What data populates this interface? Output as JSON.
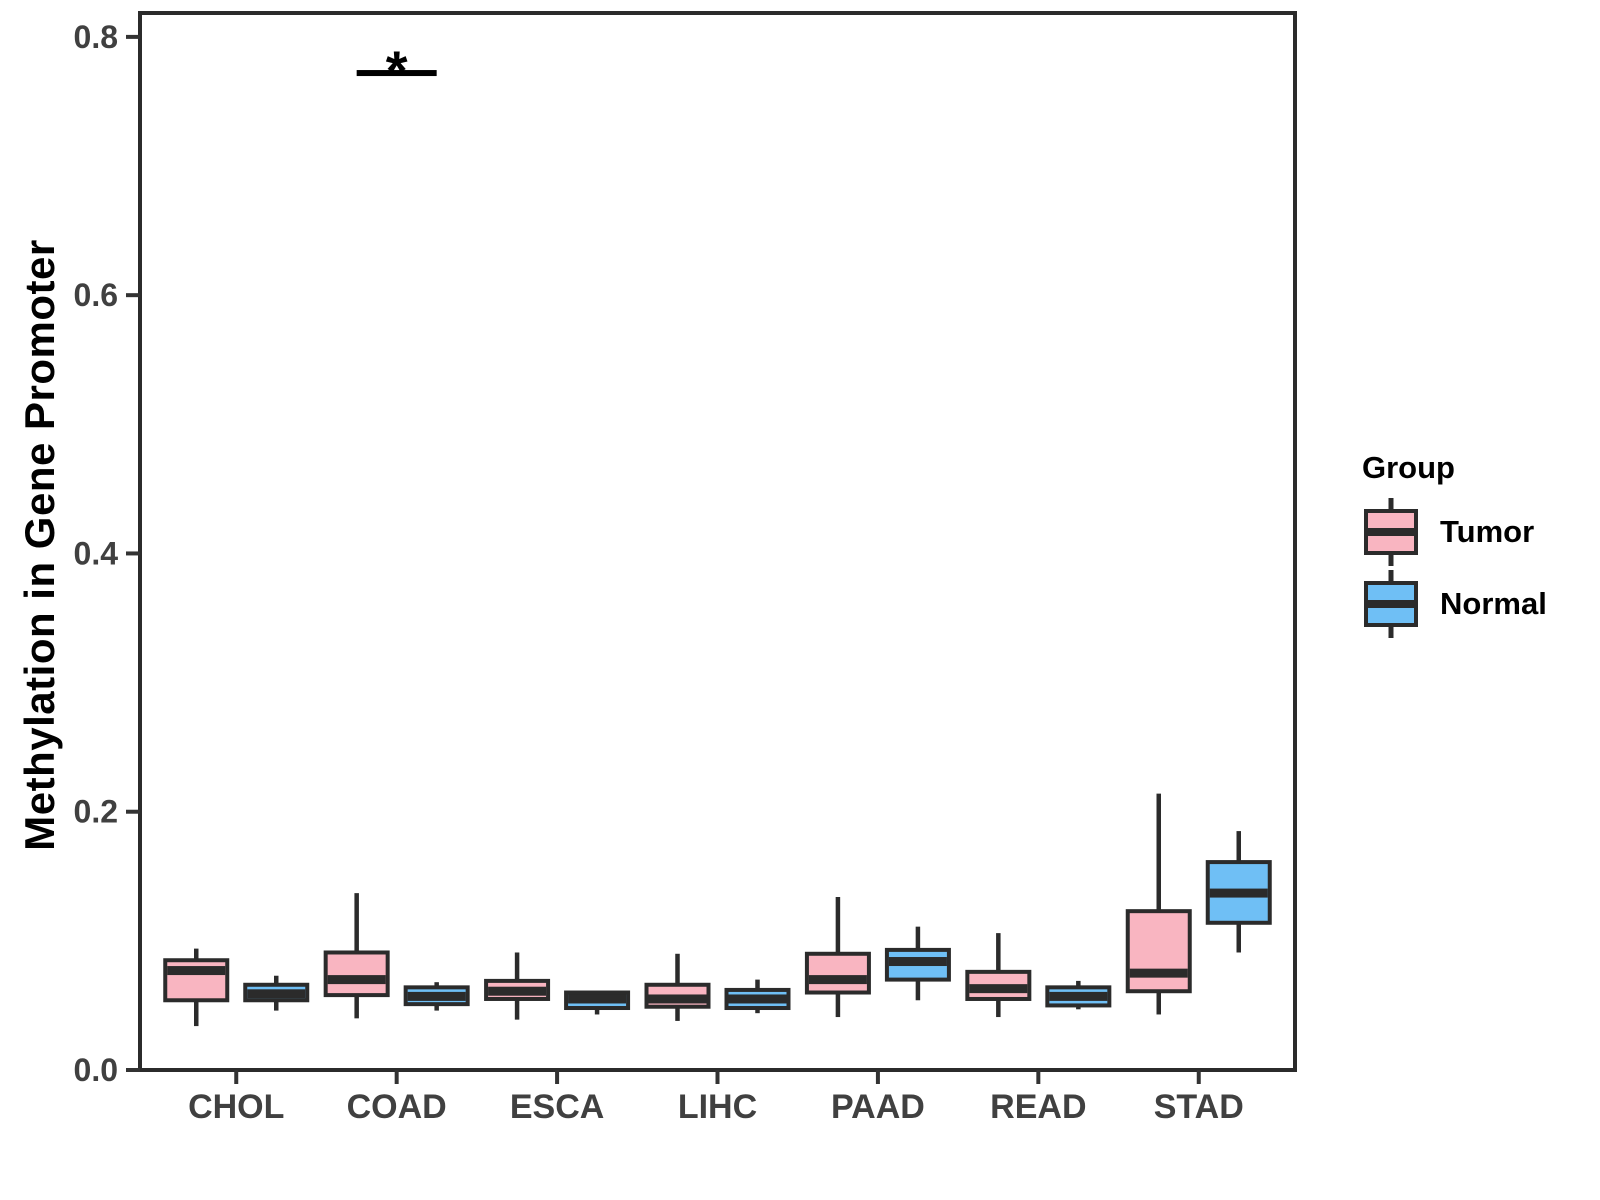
{
  "chart_data": {
    "type": "boxplot",
    "title": "",
    "xlabel": "",
    "ylabel": "Methylation in Gene Promoter",
    "categories": [
      "CHOL",
      "COAD",
      "ESCA",
      "LIHC",
      "PAAD",
      "READ",
      "STAD"
    ],
    "y_ticks": [
      0.0,
      0.2,
      0.4,
      0.6,
      0.8
    ],
    "y_tick_labels": [
      "0.0",
      "0.2",
      "0.4",
      "0.6",
      "0.8"
    ],
    "ylim": [
      0,
      0.82
    ],
    "grid": "off",
    "legend": {
      "title": "Group",
      "position": "right",
      "entries": [
        {
          "label": "Tumor",
          "color": "#F9B5C1"
        },
        {
          "label": "Normal",
          "color": "#6FBFF5"
        }
      ]
    },
    "series": [
      {
        "name": "Tumor",
        "color": "#F9B5C1",
        "boxes": [
          {
            "category": "CHOL",
            "min": 0.034,
            "q1": 0.054,
            "median": 0.077,
            "q3": 0.085,
            "max": 0.094
          },
          {
            "category": "COAD",
            "min": 0.04,
            "q1": 0.058,
            "median": 0.07,
            "q3": 0.091,
            "max": 0.137
          },
          {
            "category": "ESCA",
            "min": 0.039,
            "q1": 0.055,
            "median": 0.061,
            "q3": 0.069,
            "max": 0.091
          },
          {
            "category": "LIHC",
            "min": 0.038,
            "q1": 0.049,
            "median": 0.055,
            "q3": 0.066,
            "max": 0.09
          },
          {
            "category": "PAAD",
            "min": 0.041,
            "q1": 0.06,
            "median": 0.07,
            "q3": 0.09,
            "max": 0.134
          },
          {
            "category": "READ",
            "min": 0.041,
            "q1": 0.055,
            "median": 0.063,
            "q3": 0.076,
            "max": 0.106
          },
          {
            "category": "STAD",
            "min": 0.043,
            "q1": 0.061,
            "median": 0.075,
            "q3": 0.123,
            "max": 0.214
          }
        ]
      },
      {
        "name": "Normal",
        "color": "#6FBFF5",
        "boxes": [
          {
            "category": "CHOL",
            "min": 0.046,
            "q1": 0.054,
            "median": 0.059,
            "q3": 0.066,
            "max": 0.073
          },
          {
            "category": "COAD",
            "min": 0.046,
            "q1": 0.051,
            "median": 0.057,
            "q3": 0.064,
            "max": 0.068
          },
          {
            "category": "ESCA",
            "min": 0.043,
            "q1": 0.048,
            "median": 0.055,
            "q3": 0.06,
            "max": 0.061
          },
          {
            "category": "LIHC",
            "min": 0.044,
            "q1": 0.048,
            "median": 0.055,
            "q3": 0.062,
            "max": 0.07
          },
          {
            "category": "PAAD",
            "min": 0.054,
            "q1": 0.07,
            "median": 0.084,
            "q3": 0.093,
            "max": 0.111
          },
          {
            "category": "READ",
            "min": 0.047,
            "q1": 0.05,
            "median": 0.057,
            "q3": 0.064,
            "max": 0.069
          },
          {
            "category": "STAD",
            "min": 0.091,
            "q1": 0.114,
            "median": 0.137,
            "q3": 0.161,
            "max": 0.185
          }
        ]
      }
    ],
    "annotations": [
      {
        "type": "significance",
        "category": "COAD",
        "label": "*",
        "bar_y": 0.772
      }
    ],
    "colors": {
      "box_border": "#2B2B2B",
      "tick": "#333333",
      "tick_text": "#404040",
      "panel_border": "#2B2B2B",
      "background": "#FFFFFF"
    }
  }
}
